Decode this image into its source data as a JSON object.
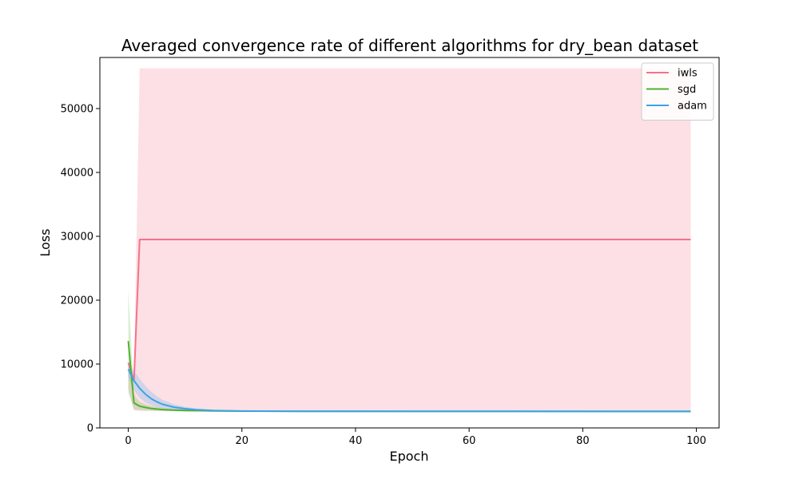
{
  "chart_data": {
    "type": "line",
    "title": "Averaged convergence rate of different algorithms for dry_bean dataset",
    "xlabel": "Epoch",
    "ylabel": "Loss",
    "xlim": [
      -5,
      104
    ],
    "ylim": [
      0,
      58000
    ],
    "xticks": [
      0,
      20,
      40,
      60,
      80,
      100
    ],
    "yticks": [
      0,
      10000,
      20000,
      30000,
      40000,
      50000
    ],
    "grid": false,
    "legend": "top-right",
    "series": [
      {
        "name": "iwls",
        "color": "#f77189",
        "x": [
          0,
          1,
          2,
          99
        ],
        "mean": [
          10200,
          7400,
          29500,
          29500
        ],
        "lower": [
          6200,
          2700,
          2650,
          2600
        ],
        "upper": [
          10400,
          8200,
          56300,
          56300
        ]
      },
      {
        "name": "sgd",
        "color": "#50b131",
        "x": [
          0,
          1,
          2,
          3,
          4,
          5,
          6,
          8,
          10,
          15,
          20,
          30,
          50,
          99
        ],
        "mean": [
          13600,
          3900,
          3400,
          3200,
          3050,
          2950,
          2880,
          2780,
          2720,
          2660,
          2630,
          2610,
          2600,
          2590
        ],
        "lower": [
          5500,
          2900,
          2800,
          2720,
          2680,
          2650,
          2630,
          2610,
          2600,
          2590,
          2585,
          2580,
          2575,
          2570
        ],
        "upper": [
          21800,
          5200,
          4100,
          3700,
          3450,
          3300,
          3150,
          2990,
          2900,
          2760,
          2700,
          2660,
          2640,
          2630
        ]
      },
      {
        "name": "adam",
        "color": "#3ba3ec",
        "x": [
          0,
          1,
          2,
          3,
          4,
          5,
          6,
          8,
          10,
          12,
          15,
          20,
          30,
          50,
          99
        ],
        "mean": [
          9200,
          7400,
          6200,
          5300,
          4600,
          4100,
          3700,
          3250,
          3000,
          2850,
          2720,
          2640,
          2600,
          2590,
          2580
        ],
        "lower": [
          8000,
          5900,
          4700,
          4000,
          3600,
          3300,
          3100,
          2900,
          2780,
          2700,
          2640,
          2600,
          2580,
          2575,
          2570
        ],
        "upper": [
          10500,
          8900,
          7700,
          6600,
          5700,
          5000,
          4400,
          3700,
          3300,
          3050,
          2850,
          2700,
          2630,
          2610,
          2600
        ]
      }
    ]
  }
}
